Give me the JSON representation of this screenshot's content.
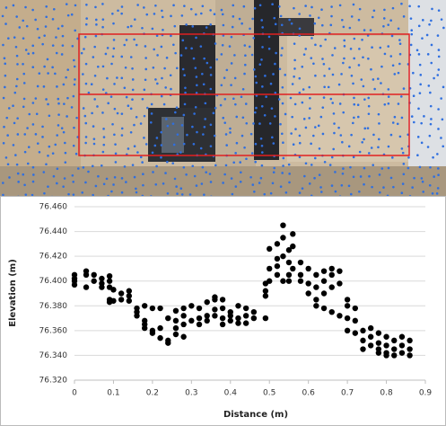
{
  "chart_data": {
    "type": "scatter",
    "xlabel": "Distance (m)",
    "ylabel": "Elevation (m)",
    "color": "#000000",
    "grid": true,
    "xlim": [
      0,
      0.9
    ],
    "xticks": [
      0,
      0.1,
      0.2,
      0.3,
      0.4,
      0.5,
      0.6,
      0.7,
      0.8,
      0.9
    ],
    "ylim": [
      76.32,
      76.46
    ],
    "yticks": [
      {
        "value": 76.32,
        "label": "76.320"
      },
      {
        "value": 76.34,
        "label": "76.340"
      },
      {
        "value": 76.36,
        "label": "76.360"
      },
      {
        "value": 76.38,
        "label": "76.380"
      },
      {
        "value": 76.4,
        "label": "76.400"
      },
      {
        "value": 76.42,
        "label": "76.420"
      },
      {
        "value": 76.44,
        "label": "76.440"
      },
      {
        "value": 76.46,
        "label": "76.460"
      }
    ],
    "x": [
      0,
      0,
      0,
      0,
      0.03,
      0.03,
      0.03,
      0.05,
      0.05,
      0.07,
      0.07,
      0.07,
      0.09,
      0.09,
      0.09,
      0.09,
      0.09,
      0.1,
      0.1,
      0.12,
      0.12,
      0.14,
      0.14,
      0.14,
      0.16,
      0.16,
      0.16,
      0.18,
      0.18,
      0.18,
      0.18,
      0.2,
      0.2,
      0.2,
      0.22,
      0.22,
      0.22,
      0.24,
      0.24,
      0.24,
      0.26,
      0.26,
      0.26,
      0.26,
      0.28,
      0.28,
      0.28,
      0.28,
      0.3,
      0.3,
      0.32,
      0.32,
      0.32,
      0.34,
      0.34,
      0.34,
      0.36,
      0.36,
      0.36,
      0.36,
      0.38,
      0.38,
      0.38,
      0.38,
      0.4,
      0.4,
      0.4,
      0.42,
      0.42,
      0.42,
      0.44,
      0.44,
      0.44,
      0.46,
      0.46,
      0.49,
      0.49,
      0.49,
      0.49,
      0.5,
      0.5,
      0.5,
      0.52,
      0.52,
      0.52,
      0.52,
      0.535,
      0.535,
      0.535,
      0.535,
      0.55,
      0.55,
      0.55,
      0.55,
      0.56,
      0.56,
      0.56,
      0.58,
      0.58,
      0.58,
      0.6,
      0.6,
      0.6,
      0.62,
      0.62,
      0.62,
      0.62,
      0.64,
      0.64,
      0.64,
      0.64,
      0.66,
      0.66,
      0.66,
      0.66,
      0.68,
      0.68,
      0.68,
      0.7,
      0.7,
      0.7,
      0.7,
      0.72,
      0.72,
      0.72,
      0.74,
      0.74,
      0.74,
      0.76,
      0.76,
      0.76,
      0.78,
      0.78,
      0.78,
      0.78,
      0.8,
      0.8,
      0.8,
      0.8,
      0.82,
      0.82,
      0.82,
      0.84,
      0.84,
      0.84,
      0.86,
      0.86,
      0.86
    ],
    "values": [
      76.405,
      76.4,
      76.397,
      76.402,
      76.408,
      76.395,
      76.405,
      76.405,
      76.4,
      76.398,
      76.395,
      76.402,
      76.404,
      76.4,
      76.395,
      76.385,
      76.383,
      76.393,
      76.384,
      76.39,
      76.385,
      76.388,
      76.384,
      76.392,
      76.378,
      76.372,
      76.375,
      76.368,
      76.365,
      76.362,
      76.38,
      76.378,
      76.36,
      76.358,
      76.354,
      76.362,
      76.378,
      76.352,
      76.35,
      76.37,
      76.368,
      76.376,
      76.357,
      76.362,
      76.378,
      76.372,
      76.365,
      76.355,
      76.368,
      76.38,
      76.37,
      76.378,
      76.365,
      76.383,
      76.372,
      76.368,
      76.387,
      76.377,
      76.372,
      76.385,
      76.385,
      76.378,
      76.37,
      76.365,
      76.375,
      76.368,
      76.372,
      76.38,
      76.37,
      76.366,
      76.378,
      76.372,
      76.366,
      76.375,
      76.37,
      76.392,
      76.398,
      76.37,
      76.388,
      76.426,
      76.41,
      76.4,
      76.43,
      76.418,
      76.412,
      76.405,
      76.445,
      76.435,
      76.42,
      76.4,
      76.425,
      76.415,
      76.405,
      76.4,
      76.438,
      76.428,
      76.41,
      76.415,
      76.4,
      76.405,
      76.41,
      76.398,
      76.39,
      76.405,
      76.395,
      76.385,
      76.38,
      76.408,
      76.4,
      76.39,
      76.378,
      76.41,
      76.405,
      76.395,
      76.375,
      76.408,
      76.398,
      76.372,
      76.385,
      76.38,
      76.37,
      76.36,
      76.378,
      76.368,
      76.358,
      76.36,
      76.352,
      76.345,
      76.362,
      76.355,
      76.348,
      76.358,
      76.35,
      76.345,
      76.342,
      76.355,
      76.348,
      76.342,
      76.34,
      76.352,
      76.345,
      76.34,
      76.355,
      76.348,
      76.342,
      76.352,
      76.345,
      76.34
    ]
  }
}
